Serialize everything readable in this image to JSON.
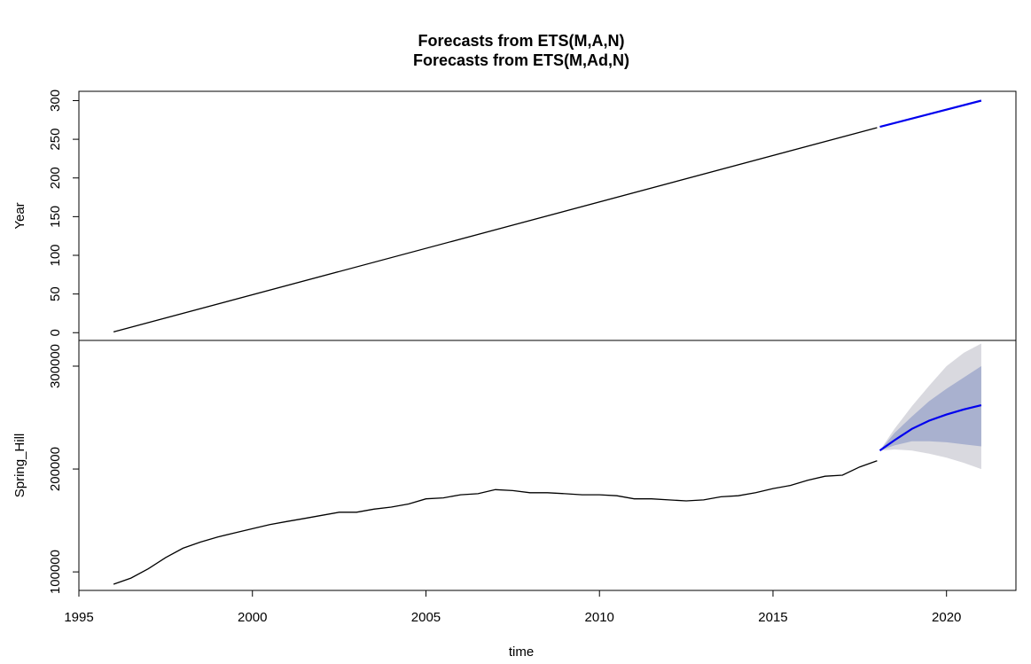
{
  "chart_data": {
    "type": "line",
    "titles": [
      "Forecasts from ETS(M,A,N)",
      "Forecasts from ETS(M,Ad,N)"
    ],
    "xlabel": "time",
    "xlim": [
      1995,
      2022
    ],
    "xticks": [
      1995,
      2000,
      2005,
      2010,
      2015,
      2020
    ],
    "history_end": 2018.0,
    "forecast_end": 2021.0,
    "panels": [
      {
        "ylabel": "Year",
        "ylim": [
          -10,
          312
        ],
        "yticks": [
          0,
          50,
          100,
          150,
          200,
          250,
          300
        ],
        "history": {
          "x": [
            1996.0,
            2018.0
          ],
          "y": [
            1,
            265
          ]
        },
        "forecast": {
          "x": [
            2018.08,
            2021.0
          ],
          "y": [
            266,
            300
          ]
        }
      },
      {
        "ylabel": "Spring_Hill",
        "ylim": [
          82000,
          325000
        ],
        "yticks": [
          100000,
          200000,
          300000
        ],
        "history": {
          "x": [
            1996.0,
            1996.5,
            1997.0,
            1997.5,
            1998.0,
            1998.5,
            1999.0,
            1999.5,
            2000.0,
            2000.5,
            2001.0,
            2001.5,
            2002.0,
            2002.5,
            2003.0,
            2003.5,
            2004.0,
            2004.5,
            2005.0,
            2005.5,
            2006.0,
            2006.5,
            2007.0,
            2007.5,
            2008.0,
            2008.5,
            2009.0,
            2009.5,
            2010.0,
            2010.5,
            2011.0,
            2011.5,
            2012.0,
            2012.5,
            2013.0,
            2013.5,
            2014.0,
            2014.5,
            2015.0,
            2015.5,
            2016.0,
            2016.5,
            2017.0,
            2017.5,
            2018.0
          ],
          "y": [
            88000,
            94000,
            103000,
            114000,
            123000,
            129000,
            134000,
            138000,
            142000,
            146000,
            149000,
            152000,
            155000,
            158000,
            158000,
            161000,
            163000,
            166000,
            171000,
            172000,
            175000,
            176000,
            180000,
            179000,
            177000,
            177000,
            176000,
            175000,
            175000,
            174000,
            171000,
            171000,
            170000,
            169000,
            170000,
            173000,
            174000,
            177000,
            181000,
            184000,
            189000,
            193000,
            194000,
            202000,
            208000
          ]
        },
        "forecast": {
          "x": [
            2018.08,
            2018.5,
            2019.0,
            2019.5,
            2020.0,
            2020.5,
            2021.0
          ],
          "y": [
            218000,
            228000,
            239000,
            247000,
            253000,
            258000,
            262000
          ],
          "lower80": [
            218000,
            223000,
            227000,
            227000,
            226000,
            224000,
            222000
          ],
          "upper80": [
            218000,
            235000,
            251000,
            266000,
            278000,
            289000,
            300000
          ],
          "lower95": [
            218000,
            219000,
            218000,
            215000,
            211000,
            206000,
            200000
          ],
          "upper95": [
            218000,
            239000,
            261000,
            281000,
            300000,
            313000,
            322000
          ]
        }
      }
    ],
    "colors": {
      "history": "#000000",
      "forecast": "#0000ee",
      "band80": "#a9b1cf",
      "band95": "#d9d9df"
    }
  }
}
